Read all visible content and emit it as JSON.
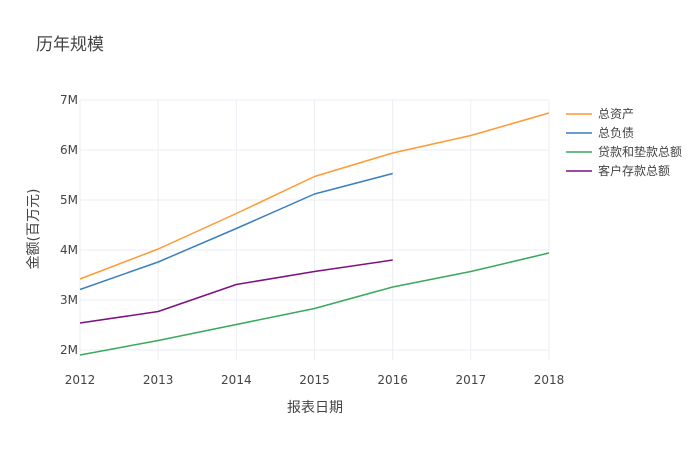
{
  "chart_data": {
    "type": "line",
    "title": "历年规模",
    "xlabel": "报表日期",
    "ylabel": "金额(百万元)",
    "x": [
      2012,
      2013,
      2014,
      2015,
      2016,
      2017,
      2018
    ],
    "xlim": [
      2012,
      2018
    ],
    "ylim": [
      1.8,
      7.0
    ],
    "y_ticks": [
      {
        "value": 2,
        "label": "2M"
      },
      {
        "value": 3,
        "label": "3M"
      },
      {
        "value": 4,
        "label": "4M"
      },
      {
        "value": 5,
        "label": "5M"
      },
      {
        "value": 6,
        "label": "6M"
      },
      {
        "value": 7,
        "label": "7M"
      }
    ],
    "grid": true,
    "legend_position": "right",
    "series": [
      {
        "name": "总资产",
        "color": "#ff9933",
        "x": [
          2012,
          2013,
          2014,
          2015,
          2016,
          2017,
          2018
        ],
        "values": [
          3.42,
          4.02,
          4.73,
          5.47,
          5.94,
          6.29,
          6.74
        ]
      },
      {
        "name": "总负债",
        "color": "#3a7fbf",
        "x": [
          2012,
          2013,
          2014,
          2015,
          2016
        ],
        "values": [
          3.21,
          3.76,
          4.43,
          5.12,
          5.53
        ]
      },
      {
        "name": "贷款和垫款总额",
        "color": "#39a85a",
        "x": [
          2012,
          2013,
          2014,
          2015,
          2016,
          2017,
          2018
        ],
        "values": [
          1.9,
          2.19,
          2.51,
          2.83,
          3.26,
          3.57,
          3.94
        ]
      },
      {
        "name": "客户存款总额",
        "color": "#7e1080",
        "x": [
          2012,
          2013,
          2014,
          2015,
          2016
        ],
        "values": [
          2.54,
          2.77,
          3.31,
          3.57,
          3.8
        ]
      }
    ]
  }
}
